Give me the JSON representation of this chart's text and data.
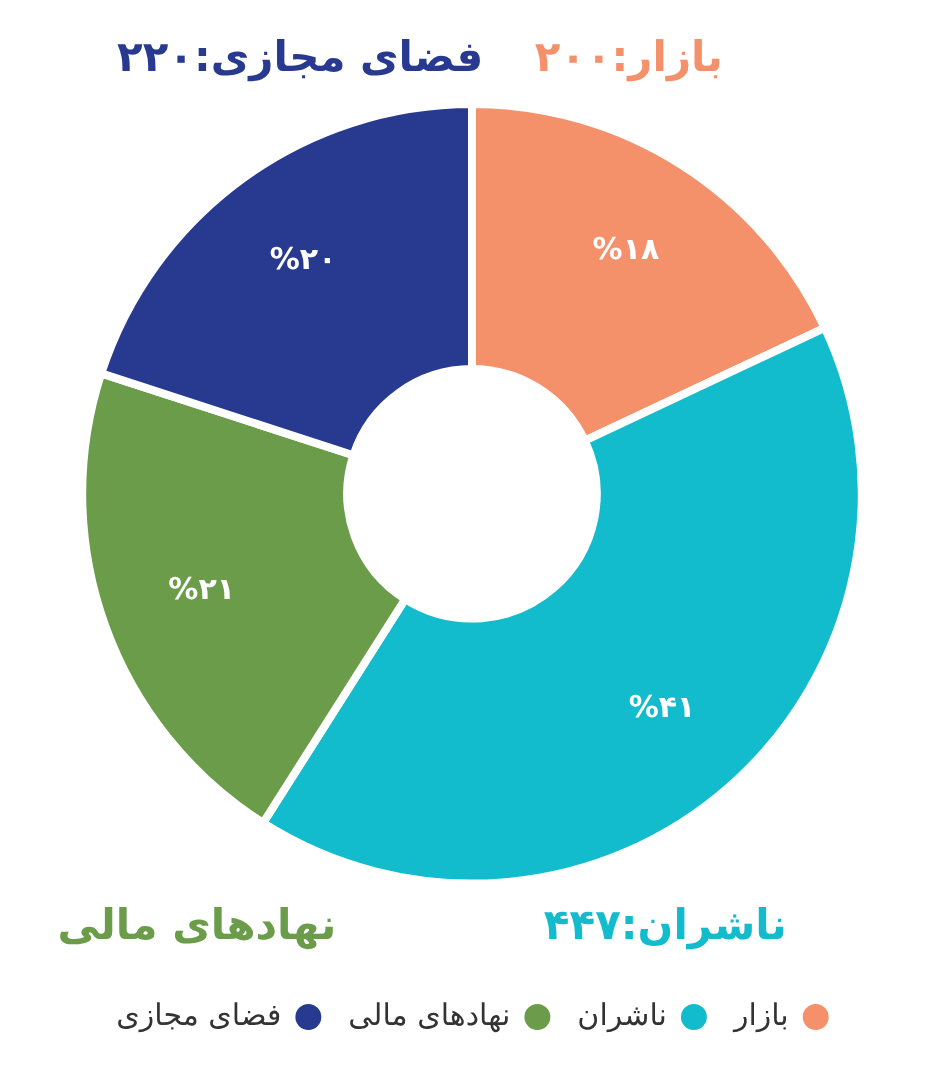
{
  "chart_data": {
    "type": "donut",
    "categories": [
      "بازار",
      "ناشران",
      "نهادهای مالی",
      "فضای مجازی"
    ],
    "values": [
      18,
      41,
      21,
      20
    ],
    "colors": [
      "#f4906a",
      "#12bccc",
      "#6a9c4a",
      "#283a8f"
    ],
    "value_labels": [
      "%۱۸",
      "%۴۱",
      "%۲۱",
      "%۲۰"
    ],
    "annotations": [
      "بازار:۲۰۰",
      "ناشران:۴۴۷",
      "نهادهای مالی",
      "فضای مجازی:۲۲۰"
    ],
    "legend": "bottom"
  }
}
